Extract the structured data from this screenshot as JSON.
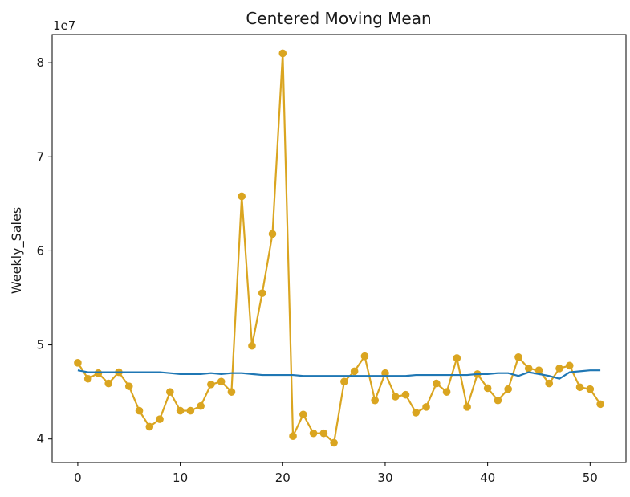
{
  "chart_data": {
    "type": "line",
    "title": "Centered Moving Mean",
    "xlabel": "",
    "ylabel": "Weekly_Sales",
    "y_offset_text": "1e7",
    "xlim": [
      -2.5,
      53.5
    ],
    "ylim": [
      3.75,
      8.3
    ],
    "x_ticks": [
      0,
      10,
      20,
      30,
      40,
      50
    ],
    "y_ticks": [
      4,
      5,
      6,
      7,
      8
    ],
    "x_tick_labels": [
      "0",
      "10",
      "20",
      "30",
      "40",
      "50"
    ],
    "y_tick_labels": [
      "4",
      "5",
      "6",
      "7",
      "8"
    ],
    "grid": false,
    "legend": "none",
    "x": [
      0,
      1,
      2,
      3,
      4,
      5,
      6,
      7,
      8,
      9,
      10,
      11,
      12,
      13,
      14,
      15,
      16,
      17,
      18,
      19,
      20,
      21,
      22,
      23,
      24,
      25,
      26,
      27,
      28,
      29,
      30,
      31,
      32,
      33,
      34,
      35,
      36,
      37,
      38,
      39,
      40,
      41,
      42,
      43,
      44,
      45,
      46,
      47,
      48,
      49,
      50,
      51
    ],
    "series": [
      {
        "color": "#DAA520",
        "marker": "circle",
        "values": [
          4.81,
          4.64,
          4.7,
          4.59,
          4.71,
          4.56,
          4.3,
          4.13,
          4.21,
          4.5,
          4.3,
          4.3,
          4.35,
          4.58,
          4.61,
          4.5,
          6.58,
          4.99,
          5.55,
          6.18,
          8.1,
          4.03,
          4.26,
          4.06,
          4.06,
          3.96,
          4.61,
          4.72,
          4.88,
          4.41,
          4.7,
          4.45,
          4.47,
          4.28,
          4.34,
          4.59,
          4.5,
          4.86,
          4.34,
          4.69,
          4.54,
          4.41,
          4.53,
          4.87,
          4.75,
          4.73,
          4.59,
          4.75,
          4.78,
          4.55,
          4.53,
          4.37
        ]
      },
      {
        "color": "#1F77B4",
        "marker": "none",
        "values": [
          4.73,
          4.71,
          4.71,
          4.71,
          4.71,
          4.71,
          4.71,
          4.71,
          4.71,
          4.7,
          4.69,
          4.69,
          4.69,
          4.7,
          4.69,
          4.7,
          4.7,
          4.69,
          4.68,
          4.68,
          4.68,
          4.68,
          4.67,
          4.67,
          4.67,
          4.67,
          4.67,
          4.67,
          4.67,
          4.67,
          4.67,
          4.67,
          4.67,
          4.68,
          4.68,
          4.68,
          4.68,
          4.68,
          4.68,
          4.69,
          4.69,
          4.7,
          4.7,
          4.67,
          4.71,
          4.69,
          4.67,
          4.64,
          4.71,
          4.72,
          4.73,
          4.73
        ]
      }
    ]
  }
}
